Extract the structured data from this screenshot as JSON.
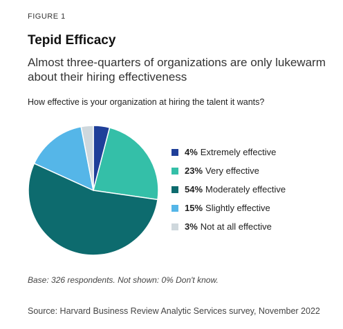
{
  "figure_label": "FIGURE 1",
  "title": "Tepid Efficacy",
  "subtitle": "Almost three-quarters of organizations are only lukewarm about their hiring effectiveness",
  "question": "How effective is your organization at hiring the talent it wants?",
  "base_note": "Base: 326 respondents. Not shown: 0% Don't know.",
  "source": "Source: Harvard Business Review Analytic Services survey, November 2022",
  "chart_data": {
    "type": "pie",
    "title": "Tepid Efficacy",
    "subtitle": "How effective is your organization at hiring the talent it wants?",
    "legend_position": "right",
    "slices": [
      {
        "label": "Extremely effective",
        "value": 4,
        "value_label": "4%",
        "color": "#1f3f99"
      },
      {
        "label": "Very effective",
        "value": 23,
        "value_label": "23%",
        "color": "#34bfa8"
      },
      {
        "label": "Moderately effective",
        "value": 54,
        "value_label": "54%",
        "color": "#0d6b6e"
      },
      {
        "label": "Slightly effective",
        "value": 15,
        "value_label": "15%",
        "color": "#55b6e8"
      },
      {
        "label": "Not at all effective",
        "value": 3,
        "value_label": "3%",
        "color": "#cfd8dd"
      }
    ]
  }
}
